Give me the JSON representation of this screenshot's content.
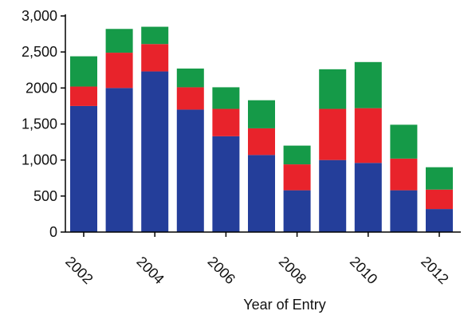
{
  "chart_data": {
    "type": "bar",
    "stacked": true,
    "categories": [
      "2002",
      "2003",
      "2004",
      "2005",
      "2006",
      "2007",
      "2008",
      "2009",
      "2010",
      "2011",
      "2012"
    ],
    "series": [
      {
        "color": "#243e9a",
        "values": [
          1750,
          2000,
          2230,
          1700,
          1330,
          1070,
          580,
          1000,
          960,
          580,
          320
        ]
      },
      {
        "color": "#e8232b",
        "values": [
          270,
          490,
          380,
          310,
          380,
          370,
          360,
          710,
          760,
          440,
          270
        ]
      },
      {
        "color": "#159a48",
        "values": [
          420,
          330,
          240,
          260,
          300,
          390,
          260,
          550,
          640,
          470,
          310
        ]
      }
    ],
    "y_ticks": [
      {
        "value": 0,
        "label": "0"
      },
      {
        "value": 500,
        "label": "500"
      },
      {
        "value": 1000,
        "label": "1,000"
      },
      {
        "value": 1500,
        "label": "1,500"
      },
      {
        "value": 2000,
        "label": "2000"
      },
      {
        "value": 2500,
        "label": "2,500"
      },
      {
        "value": 3000,
        "label": "3,000"
      }
    ],
    "x_tick_labels": [
      "2002",
      "2004",
      "2006",
      "2008",
      "2010",
      "2012"
    ],
    "xlabel": "Year of Entry",
    "ylabel": "",
    "ylim": [
      0,
      3000
    ],
    "grid": false,
    "legend": "none"
  }
}
